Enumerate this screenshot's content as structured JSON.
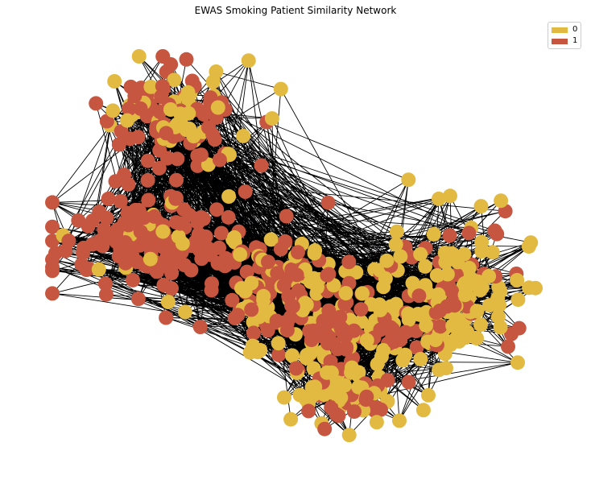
{
  "figure": {
    "title": "EWAS Smoking Patient Similarity Network"
  },
  "legend": {
    "items": [
      {
        "label": "0",
        "color": "#E2BA42"
      },
      {
        "label": "1",
        "color": "#C65640"
      }
    ]
  },
  "style": {
    "edge_color": "#000000",
    "background": "#ffffff"
  }
}
